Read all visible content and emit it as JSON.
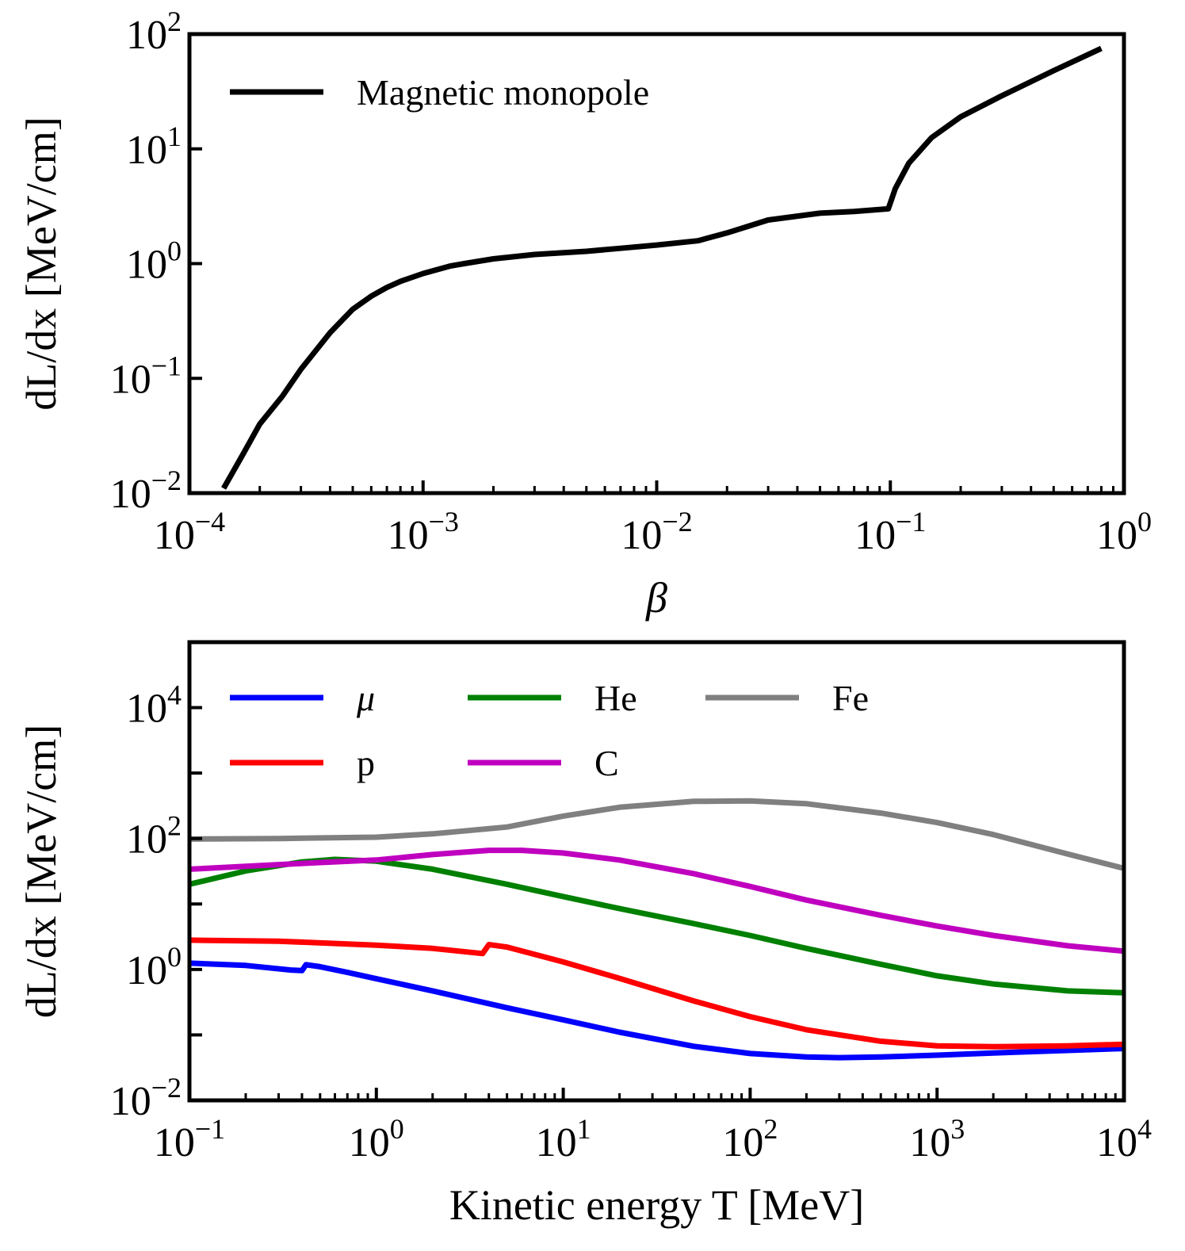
{
  "chart_data": [
    {
      "type": "line",
      "title": "",
      "xlabel": "β",
      "ylabel": "dL/dx [MeV/cm]",
      "xscale": "log",
      "yscale": "log",
      "xlim_exp": [
        -4,
        0
      ],
      "ylim_exp": [
        -2,
        2
      ],
      "x_tick_exponents": [
        "−4",
        "−3",
        "−2",
        "−1",
        "0"
      ],
      "y_tick_exponents": [
        "−2",
        "−1",
        "0",
        "1",
        "2"
      ],
      "tick_base": "10",
      "grid": false,
      "legend_position": "top-left",
      "series": [
        {
          "name": "Magnetic monopole",
          "color": "#000000",
          "x": [
            0.00014,
            0.00017,
            0.0002,
            0.00025,
            0.0003,
            0.0004,
            0.0005,
            0.0006,
            0.0007,
            0.0008,
            0.001,
            0.0013,
            0.0015,
            0.002,
            0.003,
            0.005,
            0.007,
            0.01,
            0.015,
            0.02,
            0.03,
            0.05,
            0.07,
            0.098,
            0.105,
            0.12,
            0.15,
            0.2,
            0.3,
            0.5,
            0.8
          ],
          "y": [
            0.011,
            0.022,
            0.04,
            0.07,
            0.12,
            0.25,
            0.4,
            0.52,
            0.62,
            0.7,
            0.82,
            0.95,
            1.0,
            1.1,
            1.2,
            1.28,
            1.36,
            1.45,
            1.58,
            1.85,
            2.4,
            2.75,
            2.85,
            3.0,
            4.5,
            7.5,
            12.5,
            19,
            29,
            48,
            75
          ]
        }
      ]
    },
    {
      "type": "line",
      "title": "",
      "xlabel": "Kinetic energy T [MeV]",
      "ylabel": "dL/dx [MeV/cm]",
      "xscale": "log",
      "yscale": "log",
      "xlim_exp": [
        -1,
        4
      ],
      "ylim_exp": [
        -2,
        5
      ],
      "x_tick_exponents": [
        "−1",
        "0",
        "1",
        "2",
        "3",
        "4"
      ],
      "y_tick_exponents": [
        "−2",
        "0",
        "2",
        "4"
      ],
      "tick_base": "10",
      "grid": false,
      "legend_position": "top-left",
      "legend_columns": 3,
      "series": [
        {
          "name": "μ",
          "color": "#0000ff",
          "x": [
            0.1,
            0.2,
            0.35,
            0.4,
            0.42,
            0.5,
            0.7,
            1,
            2,
            5,
            10,
            20,
            50,
            100,
            200,
            300,
            500,
            1000,
            2000,
            5000,
            10000
          ],
          "y": [
            1.25,
            1.15,
            0.98,
            0.96,
            1.18,
            1.1,
            0.9,
            0.72,
            0.47,
            0.26,
            0.17,
            0.11,
            0.067,
            0.052,
            0.046,
            0.045,
            0.046,
            0.049,
            0.053,
            0.058,
            0.062
          ]
        },
        {
          "name": "p",
          "color": "#ff0000",
          "x": [
            0.1,
            0.3,
            1,
            2,
            3.7,
            4,
            5,
            10,
            20,
            50,
            100,
            200,
            500,
            1000,
            2000,
            5000,
            10000
          ],
          "y": [
            2.8,
            2.7,
            2.35,
            2.1,
            1.75,
            2.4,
            2.2,
            1.3,
            0.73,
            0.33,
            0.19,
            0.12,
            0.08,
            0.068,
            0.066,
            0.068,
            0.072
          ]
        },
        {
          "name": "He",
          "color": "#008000",
          "x": [
            0.1,
            0.2,
            0.4,
            0.6,
            1,
            2,
            5,
            10,
            20,
            50,
            100,
            200,
            500,
            1000,
            2000,
            5000,
            10000
          ],
          "y": [
            20,
            32,
            44,
            48,
            45,
            34,
            20,
            13,
            8.5,
            5,
            3.3,
            2.1,
            1.2,
            0.8,
            0.6,
            0.47,
            0.44
          ]
        },
        {
          "name": "C",
          "color": "#bf00bf",
          "x": [
            0.1,
            0.3,
            0.5,
            1,
            2,
            4,
            6,
            10,
            20,
            50,
            100,
            200,
            500,
            1000,
            2000,
            5000,
            10000
          ],
          "y": [
            34,
            40,
            43,
            47,
            57,
            66,
            66,
            60,
            47,
            29,
            18.5,
            11.5,
            6.7,
            4.6,
            3.3,
            2.3,
            1.9
          ]
        },
        {
          "name": "Fe",
          "color": "#808080",
          "x": [
            0.1,
            0.3,
            1,
            2,
            5,
            10,
            20,
            50,
            100,
            200,
            500,
            1000,
            2000,
            5000,
            10000
          ],
          "y": [
            98,
            100,
            105,
            118,
            150,
            220,
            300,
            370,
            375,
            340,
            245,
            175,
            115,
            58,
            35
          ]
        }
      ]
    }
  ]
}
